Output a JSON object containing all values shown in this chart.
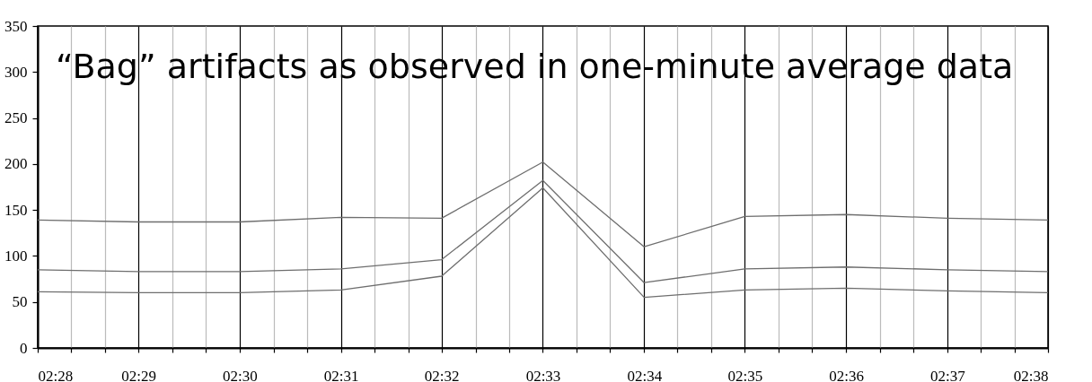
{
  "chart_data": {
    "type": "line",
    "title": "“Bag” artifacts as observed in one-minute average data",
    "x": [
      2.4667,
      2.4833,
      2.5,
      2.5167,
      2.5333,
      2.55,
      2.5667,
      2.5833,
      2.6,
      2.6167,
      2.6333
    ],
    "series": [
      {
        "color": "#6e6e6e",
        "values": [
          139,
          137,
          137,
          142,
          141,
          202,
          110,
          143,
          145,
          141,
          139
        ]
      },
      {
        "color": "#6e6e6e",
        "values": [
          85,
          83,
          83,
          86,
          96,
          182,
          71,
          86,
          88,
          85,
          83
        ]
      },
      {
        "color": "#6e6e6e",
        "values": [
          61,
          60,
          60,
          63,
          78,
          174,
          55,
          63,
          65,
          62,
          60
        ]
      }
    ],
    "xlim": [
      2.4667,
      2.6333
    ],
    "xticks": [
      {
        "value": 2.4667,
        "label": "02:28"
      },
      {
        "value": 2.4722,
        "label": null
      },
      {
        "value": 2.4778,
        "label": null
      },
      {
        "value": 2.4833,
        "label": "02:29"
      },
      {
        "value": 2.4889,
        "label": null
      },
      {
        "value": 2.4944,
        "label": null
      },
      {
        "value": 2.5,
        "label": "02:30"
      },
      {
        "value": 2.5056,
        "label": null
      },
      {
        "value": 2.5111,
        "label": null
      },
      {
        "value": 2.5167,
        "label": "02:31"
      },
      {
        "value": 2.5222,
        "label": null
      },
      {
        "value": 2.5278,
        "label": null
      },
      {
        "value": 2.5333,
        "label": "02:32"
      },
      {
        "value": 2.5389,
        "label": null
      },
      {
        "value": 2.5444,
        "label": null
      },
      {
        "value": 2.55,
        "label": "02:33"
      },
      {
        "value": 2.5556,
        "label": null
      },
      {
        "value": 2.5611,
        "label": null
      },
      {
        "value": 2.5667,
        "label": "02:34"
      },
      {
        "value": 2.5722,
        "label": null
      },
      {
        "value": 2.5778,
        "label": null
      },
      {
        "value": 2.5833,
        "label": "02:35"
      },
      {
        "value": 2.5889,
        "label": null
      },
      {
        "value": 2.5944,
        "label": null
      },
      {
        "value": 2.6,
        "label": "02:36"
      },
      {
        "value": 2.6056,
        "label": null
      },
      {
        "value": 2.6111,
        "label": null
      },
      {
        "value": 2.6167,
        "label": "02:37"
      },
      {
        "value": 2.6222,
        "label": null
      },
      {
        "value": 2.6278,
        "label": null
      },
      {
        "value": 2.6333,
        "label": "02:38"
      }
    ],
    "ylim": [
      0,
      350
    ],
    "yticks": [
      0,
      50,
      100,
      150,
      200,
      250,
      300,
      350
    ],
    "grid": "x",
    "marker": "none",
    "line_style": "solid"
  }
}
